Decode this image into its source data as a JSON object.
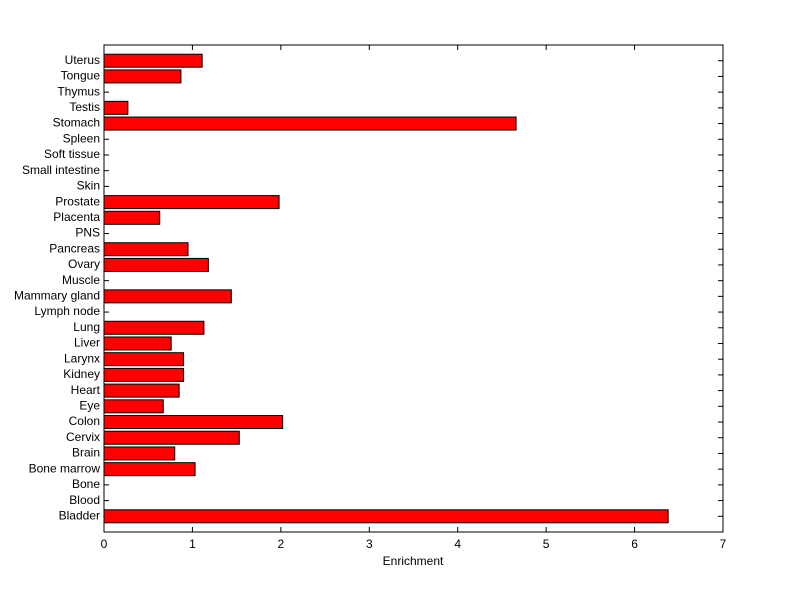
{
  "chart_data": {
    "type": "bar",
    "orientation": "horizontal",
    "xlabel": "Enrichment",
    "categories": [
      "Bladder",
      "Blood",
      "Bone",
      "Bone marrow",
      "Brain",
      "Cervix",
      "Colon",
      "Eye",
      "Heart",
      "Kidney",
      "Larynx",
      "Liver",
      "Lung",
      "Lymph node",
      "Mammary gland",
      "Muscle",
      "Ovary",
      "Pancreas",
      "PNS",
      "Placenta",
      "Prostate",
      "Skin",
      "Small intestine",
      "Soft tissue",
      "Spleen",
      "Stomach",
      "Testis",
      "Thymus",
      "Tongue",
      "Uterus"
    ],
    "values": [
      6.38,
      0,
      0,
      1.03,
      0.8,
      1.53,
      2.02,
      0.67,
      0.85,
      0.9,
      0.9,
      0.76,
      1.13,
      0,
      1.44,
      0,
      1.18,
      0.95,
      0,
      0.63,
      1.98,
      0,
      0,
      0,
      0,
      4.66,
      0.27,
      0,
      0.87,
      1.11
    ],
    "color": "#ff0000",
    "xlim": [
      0,
      7
    ],
    "xticks": [
      0,
      1,
      2,
      3,
      4,
      5,
      6,
      7
    ],
    "grid": false
  }
}
